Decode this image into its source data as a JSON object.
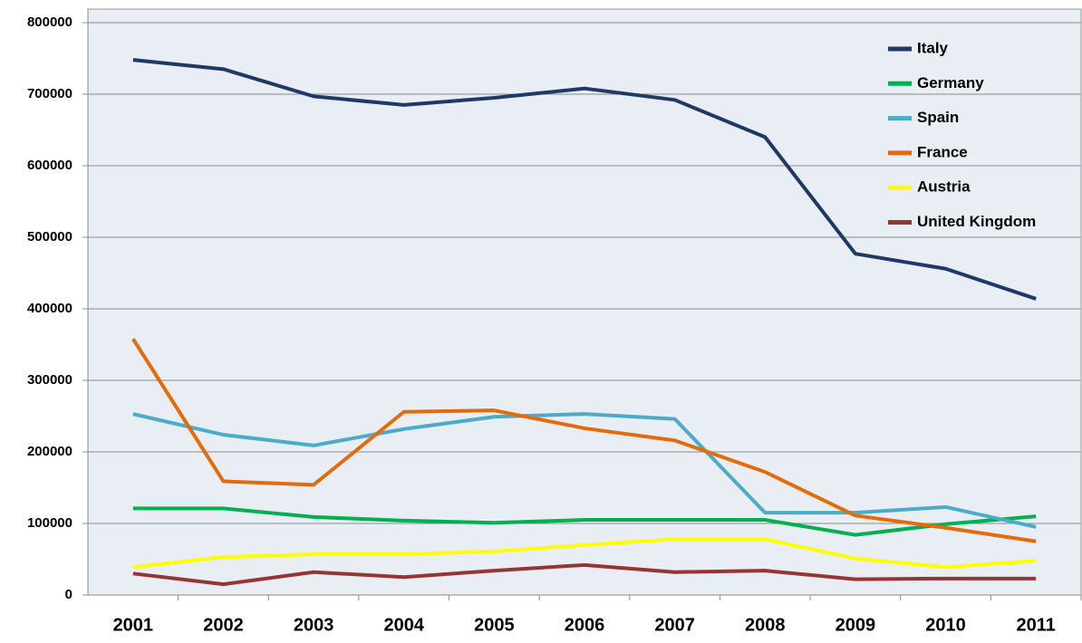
{
  "chart_data": {
    "type": "line",
    "categories": [
      "2001",
      "2002",
      "2003",
      "2004",
      "2005",
      "2006",
      "2007",
      "2008",
      "2009",
      "2010",
      "2011"
    ],
    "series": [
      {
        "name": "Italy",
        "color": "#1f3864",
        "values": [
          748000,
          735000,
          697000,
          685000,
          695000,
          708000,
          692000,
          640000,
          477000,
          456000,
          414000
        ]
      },
      {
        "name": "Germany",
        "color": "#00b050",
        "values": [
          121000,
          121000,
          109000,
          104000,
          101000,
          105000,
          105000,
          105000,
          84000,
          99000,
          110000
        ]
      },
      {
        "name": "Spain",
        "color": "#4bacc6",
        "values": [
          253000,
          224000,
          209000,
          232000,
          249000,
          253000,
          246000,
          115000,
          115000,
          123000,
          95000
        ]
      },
      {
        "name": "France",
        "color": "#e36c09",
        "values": [
          358000,
          159000,
          154000,
          256000,
          258000,
          233000,
          216000,
          172000,
          111000,
          94000,
          75000
        ]
      },
      {
        "name": "Austria",
        "color": "#ffff00",
        "values": [
          39000,
          53000,
          57000,
          57000,
          61000,
          70000,
          78000,
          78000,
          51000,
          39000,
          48000
        ]
      },
      {
        "name": "United Kingdom",
        "color": "#943634",
        "values": [
          30000,
          15000,
          32000,
          25000,
          34000,
          42000,
          32000,
          34000,
          22000,
          23000,
          23000
        ]
      }
    ],
    "ylim": [
      0,
      800000
    ],
    "yticks": [
      0,
      100000,
      200000,
      300000,
      400000,
      500000,
      600000,
      700000,
      800000
    ],
    "grid": true,
    "legend": "top-right"
  }
}
